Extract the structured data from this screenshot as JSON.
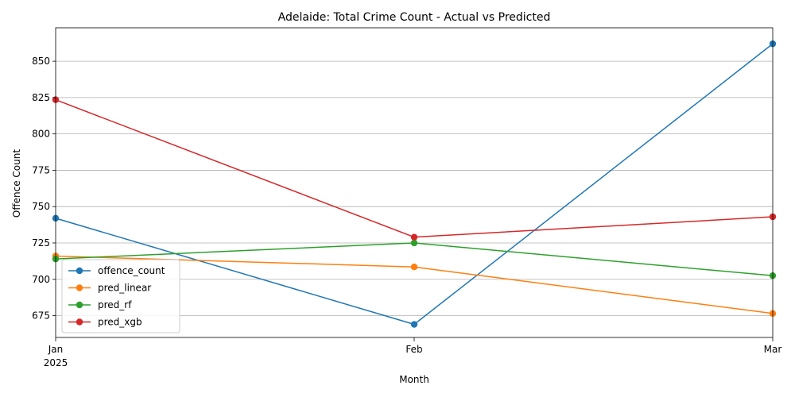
{
  "chart_data": {
    "type": "line",
    "title": "Adelaide: Total Crime Count - Actual vs Predicted",
    "xlabel": "Month",
    "ylabel": "Offence Count",
    "categories": [
      "Jan",
      "Feb",
      "Mar"
    ],
    "year_label": "2025",
    "ylim": [
      660,
      873
    ],
    "yticks": [
      675,
      700,
      725,
      750,
      775,
      800,
      825,
      850
    ],
    "grid": "y",
    "legend_position": "lower-left",
    "series": [
      {
        "name": "offence_count",
        "color": "#1f77b4",
        "values": [
          742,
          669,
          862
        ]
      },
      {
        "name": "pred_linear",
        "color": "#ff7f0e",
        "values": [
          716,
          708.5,
          676.5
        ]
      },
      {
        "name": "pred_rf",
        "color": "#2ca02c",
        "values": [
          714,
          725,
          702.5
        ]
      },
      {
        "name": "pred_xgb",
        "color": "#d62728",
        "values": [
          823.5,
          729,
          743
        ]
      }
    ]
  }
}
